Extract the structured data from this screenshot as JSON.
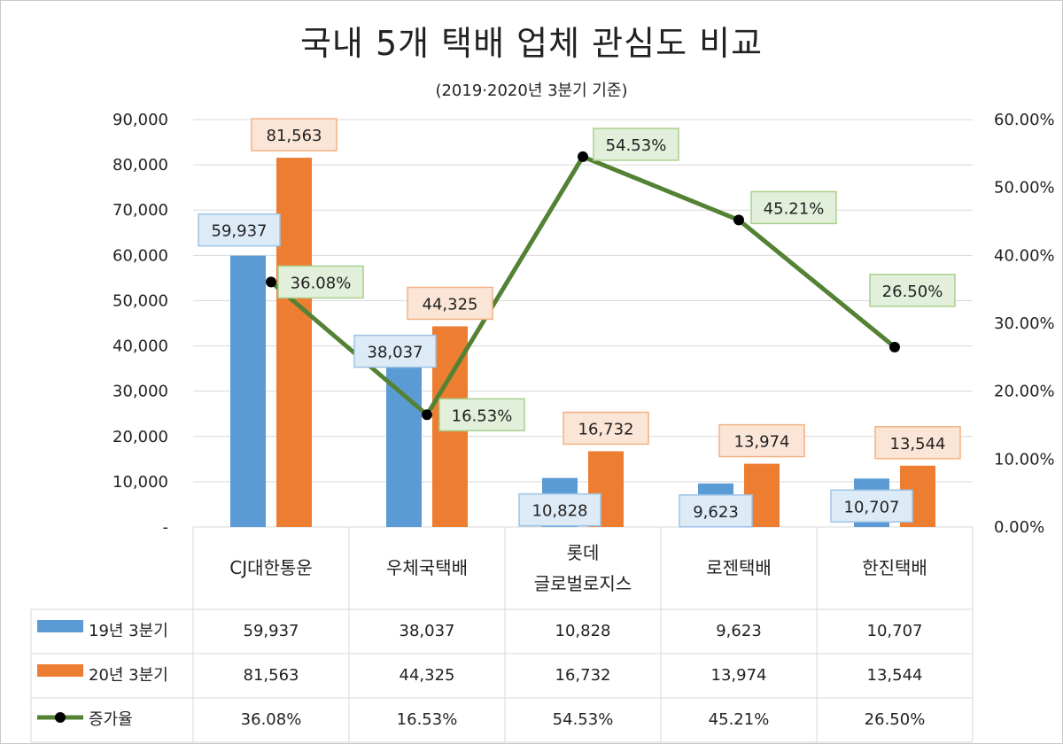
{
  "chart_data": {
    "type": "bar",
    "title": "국내 5개 택배 업체 관심도 비교",
    "subtitle": "(2019·2020년 3분기 기준)",
    "categories": [
      "CJ대한통운",
      "우체국택배",
      "롯데\n글로벌로지스",
      "로젠택배",
      "한진택배"
    ],
    "series": [
      {
        "name": "19년 3분기",
        "type": "bar",
        "axis": "left",
        "color": "#5b9bd5",
        "values": [
          59937,
          38037,
          10828,
          9623,
          10707
        ],
        "labels": [
          "59,937",
          "38,037",
          "10,828",
          "9,623",
          "10,707"
        ]
      },
      {
        "name": "20년 3분기",
        "type": "bar",
        "axis": "left",
        "color": "#ed7d31",
        "values": [
          81563,
          44325,
          16732,
          13974,
          13544
        ],
        "labels": [
          "81,563",
          "44,325",
          "16,732",
          "13,974",
          "13,544"
        ]
      },
      {
        "name": "증가율",
        "type": "line",
        "axis": "right",
        "color": "#548235",
        "values": [
          36.08,
          16.53,
          54.53,
          45.21,
          26.5
        ],
        "labels": [
          "36.08%",
          "16.53%",
          "54.53%",
          "45.21%",
          "26.50%"
        ]
      }
    ],
    "y_left": {
      "range": [
        0,
        90000
      ],
      "ticks": [
        "-",
        "10,000",
        "20,000",
        "30,000",
        "40,000",
        "50,000",
        "60,000",
        "70,000",
        "80,000",
        "90,000"
      ]
    },
    "y_right": {
      "range": [
        0,
        60
      ],
      "ticks": [
        "0.00%",
        "10.00%",
        "20.00%",
        "30.00%",
        "40.00%",
        "50.00%",
        "60.00%"
      ]
    },
    "grid": true,
    "legend": "data-table"
  }
}
